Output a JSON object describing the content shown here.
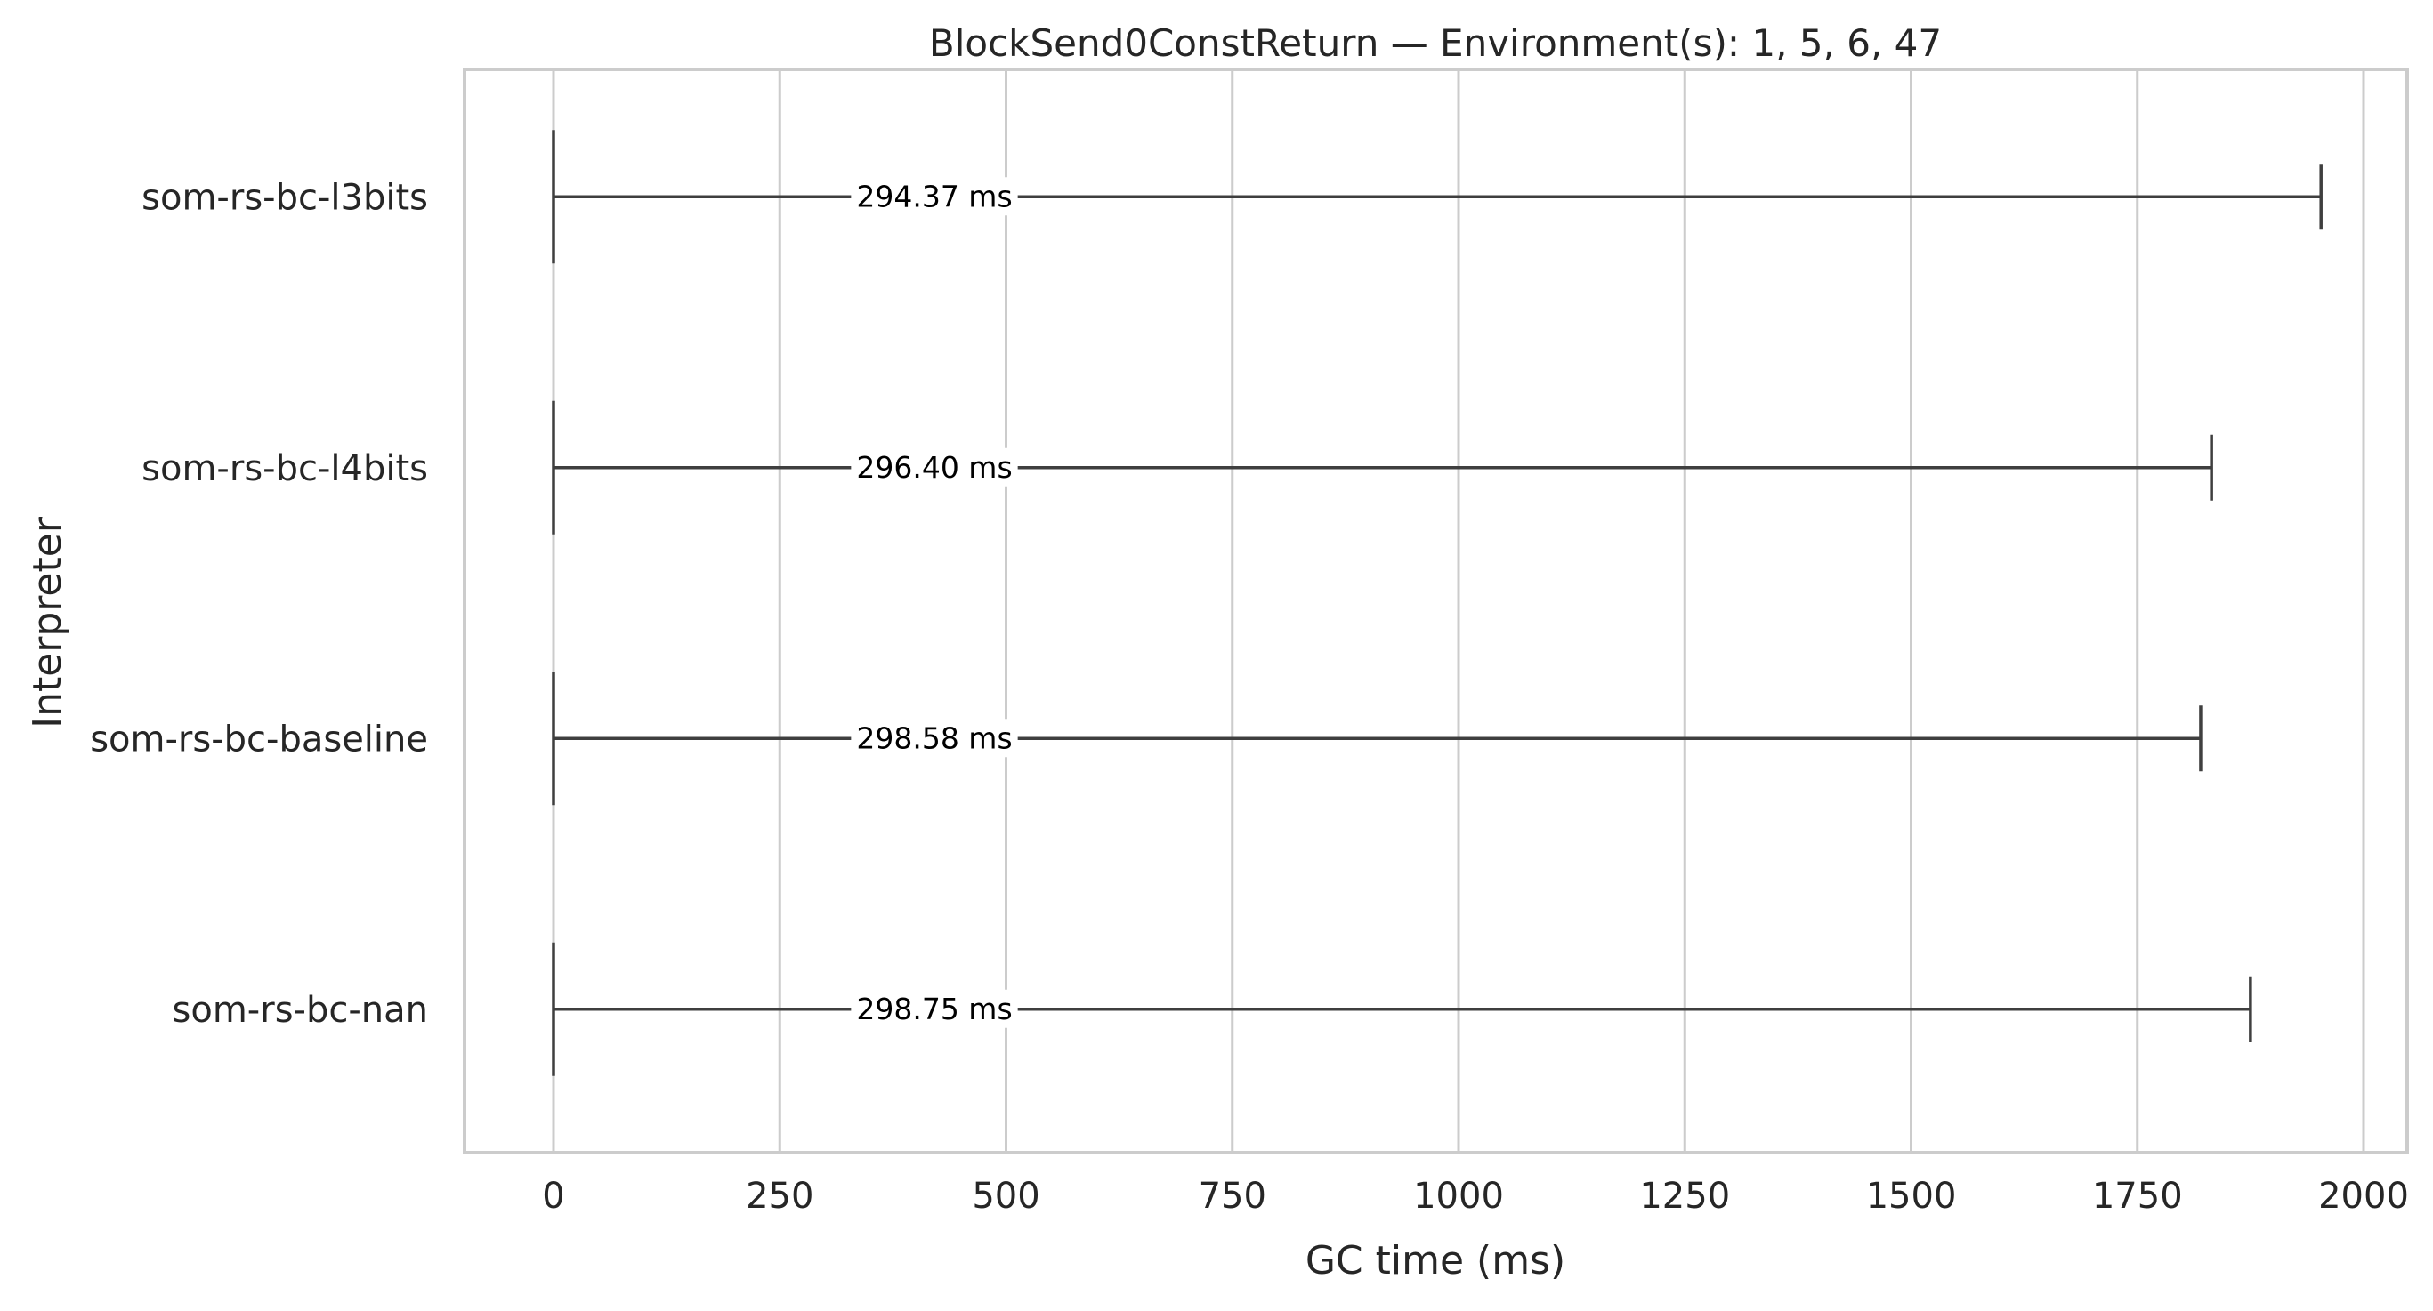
{
  "chart_data": {
    "type": "boxplot",
    "title": "BlockSend0ConstReturn — Environment(s): 1, 5, 6, 47",
    "xlabel": "GC time (ms)",
    "ylabel": "Interpreter",
    "xlim": [
      -100,
      2050
    ],
    "xticks": [
      0,
      250,
      500,
      750,
      1000,
      1250,
      1500,
      1750,
      2000
    ],
    "xtick_labels": [
      "0",
      "250",
      "500",
      "750",
      "1000",
      "1250",
      "1500",
      "1750",
      "2000"
    ],
    "grid": "vertical",
    "series": [
      {
        "category": "som-rs-bc-l3bits",
        "min": 0,
        "max": 1953,
        "label": "294.37 ms"
      },
      {
        "category": "som-rs-bc-l4bits",
        "min": 0,
        "max": 1832,
        "label": "296.40 ms"
      },
      {
        "category": "som-rs-bc-baseline",
        "min": 0,
        "max": 1820,
        "label": "298.58 ms"
      },
      {
        "category": "som-rs-bc-nan",
        "min": 0,
        "max": 1875,
        "label": "298.75 ms"
      }
    ],
    "colors": {
      "whisker": "#3f3f3f",
      "grid": "#cccccc",
      "frame": "#cccccc"
    }
  }
}
